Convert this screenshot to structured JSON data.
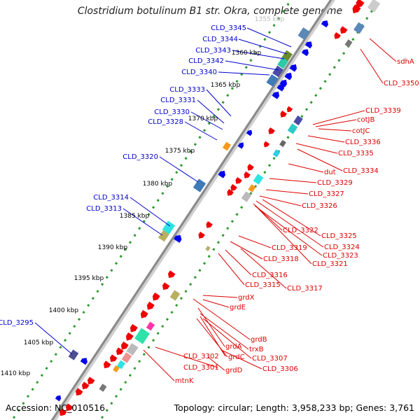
{
  "header": {
    "title": "Clostridium botulinum B1 str. Okra, complete genome"
  },
  "footer": {
    "accession": "Accession: NC_010516",
    "topology": "Topology: circular; Length: 3,958,233 bp; Genes: 3,761"
  },
  "colors": {
    "forward_label": "#0000cc",
    "reverse_label": "#dd0000",
    "backbone": "#8a8a8a",
    "dots": "#2e9a2e"
  },
  "kbp_ticks": [
    "1355 kbp",
    "1360 kbp",
    "1365 kbp",
    "1370 kbp",
    "1375 kbp",
    "1380 kbp",
    "1385 kbp",
    "1390 kbp",
    "1395 kbp",
    "1400 kbp",
    "1405 kbp",
    "1410 kbp"
  ],
  "forward_labels": [
    "CLD_3345",
    "CLD_3344",
    "CLD_3343",
    "CLD_3342",
    "CLD_3340",
    "CLD_3333",
    "CLD_3331",
    "CLD_3330",
    "CLD_3328",
    "CLD_3320",
    "CLD_3314",
    "CLD_3313",
    "CLD_3295"
  ],
  "reverse_labels": [
    "sdhA",
    "CLD_3350",
    "CLD_3339",
    "cotJB",
    "cotJC",
    "CLD_3336",
    "CLD_3335",
    "dut",
    "CLD_3334",
    "CLD_3329",
    "CLD_3327",
    "CLD_3326",
    "CLD_3322",
    "CLD_3325",
    "CLD_3324",
    "CLD_3323",
    "CLD_3319",
    "CLD_3321",
    "CLD_3318",
    "CLD_3316",
    "CLD_3315",
    "CLD_3317",
    "grdX",
    "grdE",
    "grdB",
    "grdA",
    "trxB",
    "CLD_3302",
    "grdC",
    "CLD_3307",
    "CLD_3301",
    "grdD",
    "CLD_3306",
    "mtnK"
  ]
}
